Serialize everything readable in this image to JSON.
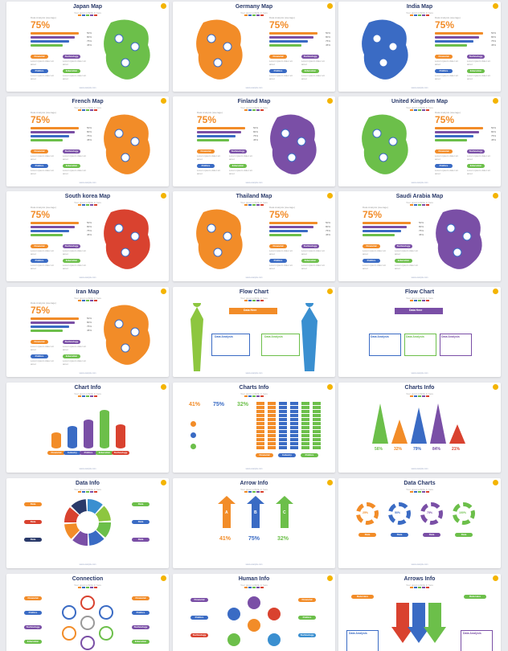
{
  "slides": [
    {
      "id": "japan",
      "title": "Japan Map",
      "kind": "map",
      "map_color": "#6cbf4a",
      "map_side": "right"
    },
    {
      "id": "germany",
      "title": "Germany Map",
      "kind": "map",
      "map_color": "#f28c28",
      "map_side": "left"
    },
    {
      "id": "india",
      "title": "India Map",
      "kind": "map",
      "map_color": "#3a6bc4",
      "map_side": "left"
    },
    {
      "id": "france",
      "title": "French Map",
      "kind": "map",
      "map_color": "#f28c28",
      "map_side": "right"
    },
    {
      "id": "finland",
      "title": "Finland Map",
      "kind": "map",
      "map_color": "#7a4fa6",
      "map_side": "right"
    },
    {
      "id": "uk",
      "title": "United Kingdom Map",
      "kind": "map",
      "map_color": "#6cbf4a",
      "map_side": "left"
    },
    {
      "id": "skorea",
      "title": "South korea Map",
      "kind": "map",
      "map_color": "#d9422f",
      "map_side": "right"
    },
    {
      "id": "thailand",
      "title": "Thailand Map",
      "kind": "map",
      "map_color": "#f28c28",
      "map_side": "left"
    },
    {
      "id": "saudi",
      "title": "Saudi Arabia Map",
      "kind": "map",
      "map_color": "#7a4fa6",
      "map_side": "right"
    },
    {
      "id": "iran",
      "title": "Iran Map",
      "kind": "map",
      "map_color": "#f28c28",
      "map_side": "right"
    },
    {
      "id": "flow1",
      "title": "Flow Chart",
      "kind": "flow1"
    },
    {
      "id": "flow2",
      "title": "Flow Chart",
      "kind": "flow2"
    },
    {
      "id": "chart_info",
      "title": "Chart Info",
      "kind": "cylinders"
    },
    {
      "id": "charts_info",
      "title": "Charts Info",
      "kind": "charts_info"
    },
    {
      "id": "charts_info2",
      "title": "Charts Info",
      "kind": "cones"
    },
    {
      "id": "data_info",
      "title": "Data Info",
      "kind": "data_info"
    },
    {
      "id": "arrow_info",
      "title": "Arrow Info",
      "kind": "arrow_info"
    },
    {
      "id": "data_charts",
      "title": "Data Charts",
      "kind": "data_charts"
    },
    {
      "id": "connection",
      "title": "Connection",
      "kind": "connection"
    },
    {
      "id": "human_info",
      "title": "Human Info",
      "kind": "human_info"
    },
    {
      "id": "arrows_info",
      "title": "Arrows Info",
      "kind": "arrows_info"
    }
  ],
  "common": {
    "subtitle": "Your great subtitle in here",
    "footer": "www.example.com",
    "data_analysis_label": "Data Analysis (average)",
    "big_percent": "75%",
    "bar_labels": [
      "50%",
      "80%",
      "75%",
      "45%"
    ],
    "pills": [
      "Financial",
      "Technology",
      "Politics",
      "Education"
    ],
    "pill_colors": [
      "#f28c28",
      "#7a4fa6",
      "#3a6bc4",
      "#6cbf4a"
    ],
    "dot_colors": [
      "#f28c28",
      "#3a6bc4",
      "#6cbf4a",
      "#7a4fa6",
      "#d9422f"
    ]
  },
  "flow": {
    "top": "Data Here",
    "left": "Data Analysis",
    "right": "Data Analysis",
    "three": [
      "Data Analysis",
      "Data Analysis",
      "Data Analysis"
    ]
  },
  "cylinders": {
    "labels": [
      "Financial",
      "Industry",
      "Politics",
      "Education",
      "Technology"
    ],
    "colors": [
      "#f28c28",
      "#3a6bc4",
      "#7a4fa6",
      "#6cbf4a",
      "#d9422f"
    ]
  },
  "charts_info": {
    "percents": [
      "41%",
      "75%",
      "32%"
    ],
    "colors": [
      "#f28c28",
      "#3a6bc4",
      "#6cbf4a"
    ],
    "labels": [
      "Financial",
      "Industry",
      "Politics"
    ]
  },
  "cones": {
    "values": [
      "56%",
      "32%",
      "79%",
      "84%",
      "21%"
    ],
    "colors": [
      "#6cbf4a",
      "#f28c28",
      "#3a6bc4",
      "#7a4fa6",
      "#d9422f"
    ]
  },
  "data_info": {
    "left": [
      "Data",
      "Data",
      "Data"
    ],
    "right": [
      "Data",
      "Data",
      "Data"
    ]
  },
  "arrow_info": {
    "letters": [
      "A",
      "B",
      "C"
    ],
    "percents": [
      "41%",
      "75%",
      "32%"
    ],
    "colors": [
      "#f28c28",
      "#3a6bc4",
      "#6cbf4a"
    ]
  },
  "data_charts": {
    "centers": [
      "25%",
      "50%",
      "75%",
      "100%"
    ],
    "labels": [
      "Data",
      "Data",
      "Data",
      "Data"
    ],
    "colors": [
      "#f28c28",
      "#3a6bc4",
      "#7a4fa6",
      "#6cbf4a"
    ]
  },
  "connection": {
    "left": [
      "Financial",
      "Politics",
      "Technology",
      "Education"
    ],
    "right": [
      "Financial",
      "Politics",
      "Technology",
      "Education"
    ]
  },
  "human_info": {
    "left": [
      "Financial",
      "Politics",
      "Technology"
    ],
    "right": [
      "Financial",
      "Politics",
      "Technology"
    ]
  },
  "arrows_info": {
    "tl": "Data Here",
    "tr": "Data Here",
    "bl": "Data Analysis",
    "br": "Data Analysis"
  }
}
